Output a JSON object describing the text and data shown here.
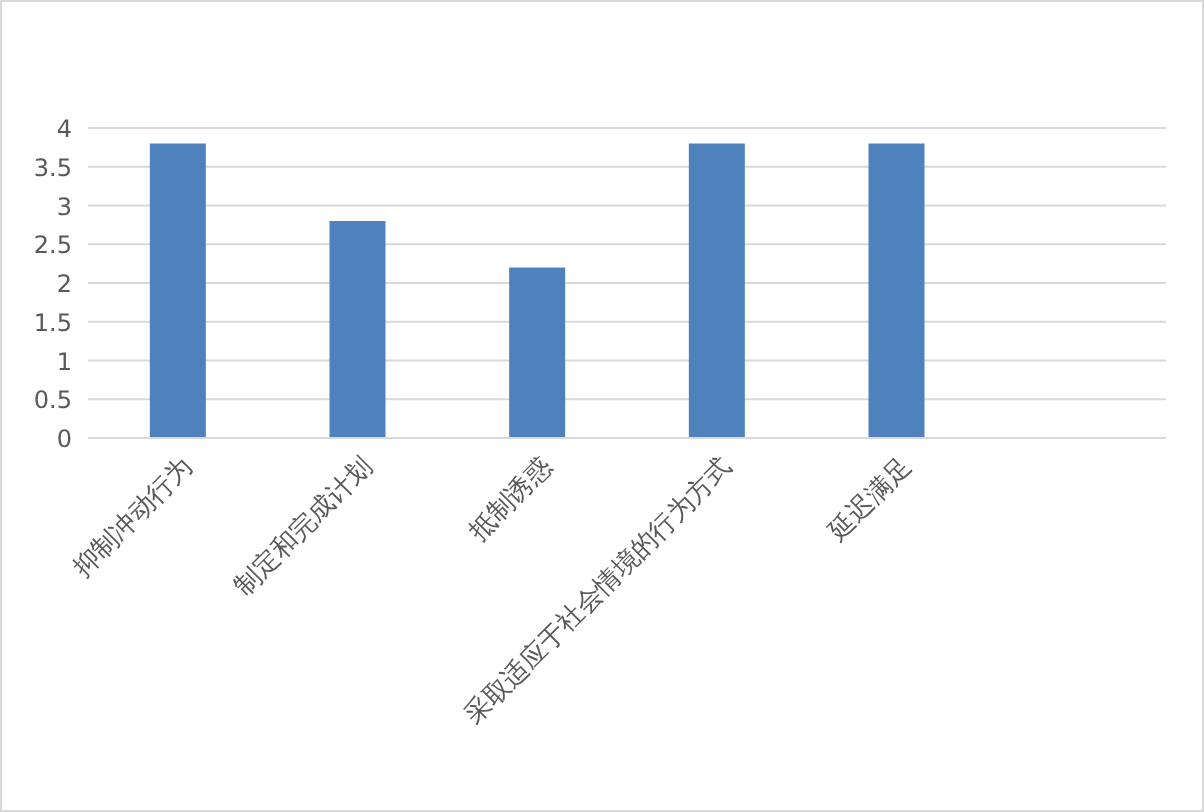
{
  "chart_data": {
    "type": "bar",
    "categories": [
      "抑制冲动行为",
      "制定和完成计划",
      "抵制诱惑",
      "采取适应于社会情境的行为方式",
      "延迟满足",
      null
    ],
    "values": [
      3.8,
      2.8,
      2.2,
      3.8,
      3.8,
      null
    ],
    "color": "#4f81bd",
    "ylim": [
      0,
      4
    ],
    "yticks": [
      0,
      0.5,
      1,
      1.5,
      2,
      2.5,
      3,
      3.5,
      4
    ],
    "grid": "y"
  }
}
